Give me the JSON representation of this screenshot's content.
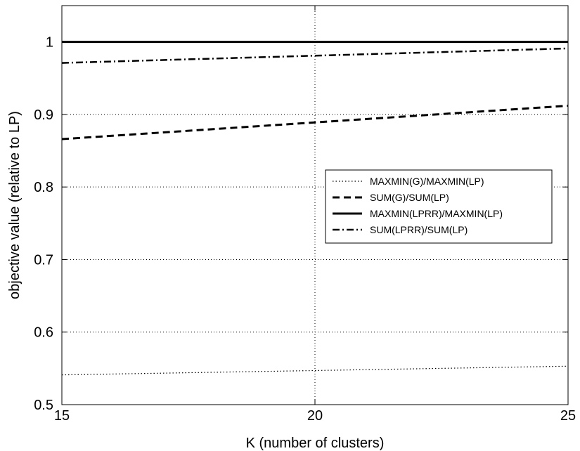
{
  "chart_data": {
    "type": "line",
    "title": "",
    "xlabel": "K (number of clusters)",
    "ylabel": "objective value (relative to LP)",
    "xlim": [
      15,
      25
    ],
    "ylim": [
      0.5,
      1.05
    ],
    "xticks": [
      15,
      20,
      25
    ],
    "xtick_labels": [
      "15",
      "20",
      "25"
    ],
    "yticks": [
      0.5,
      0.6,
      0.7,
      0.8,
      0.9,
      1.0
    ],
    "ytick_labels": [
      "0.5",
      "0.6",
      "0.7",
      "0.8",
      "0.9",
      "1"
    ],
    "grid": true,
    "legend_position": "right-center",
    "series": [
      {
        "name": "MAXMIN(G)/MAXMIN(LP)",
        "style": "dotted",
        "color": "#000000",
        "x": [
          15,
          20,
          25
        ],
        "y": [
          0.541,
          0.547,
          0.553
        ]
      },
      {
        "name": "SUM(G)/SUM(LP)",
        "style": "dashed",
        "color": "#000000",
        "x": [
          15,
          20,
          25
        ],
        "y": [
          0.866,
          0.889,
          0.912
        ]
      },
      {
        "name": "MAXMIN(LPRR)/MAXMIN(LP)",
        "style": "solid",
        "color": "#000000",
        "x": [
          15,
          20,
          25
        ],
        "y": [
          1.0,
          1.0,
          1.0
        ]
      },
      {
        "name": "SUM(LPRR)/SUM(LP)",
        "style": "dashdot",
        "color": "#000000",
        "x": [
          15,
          20,
          25
        ],
        "y": [
          0.971,
          0.981,
          0.991
        ]
      }
    ]
  }
}
